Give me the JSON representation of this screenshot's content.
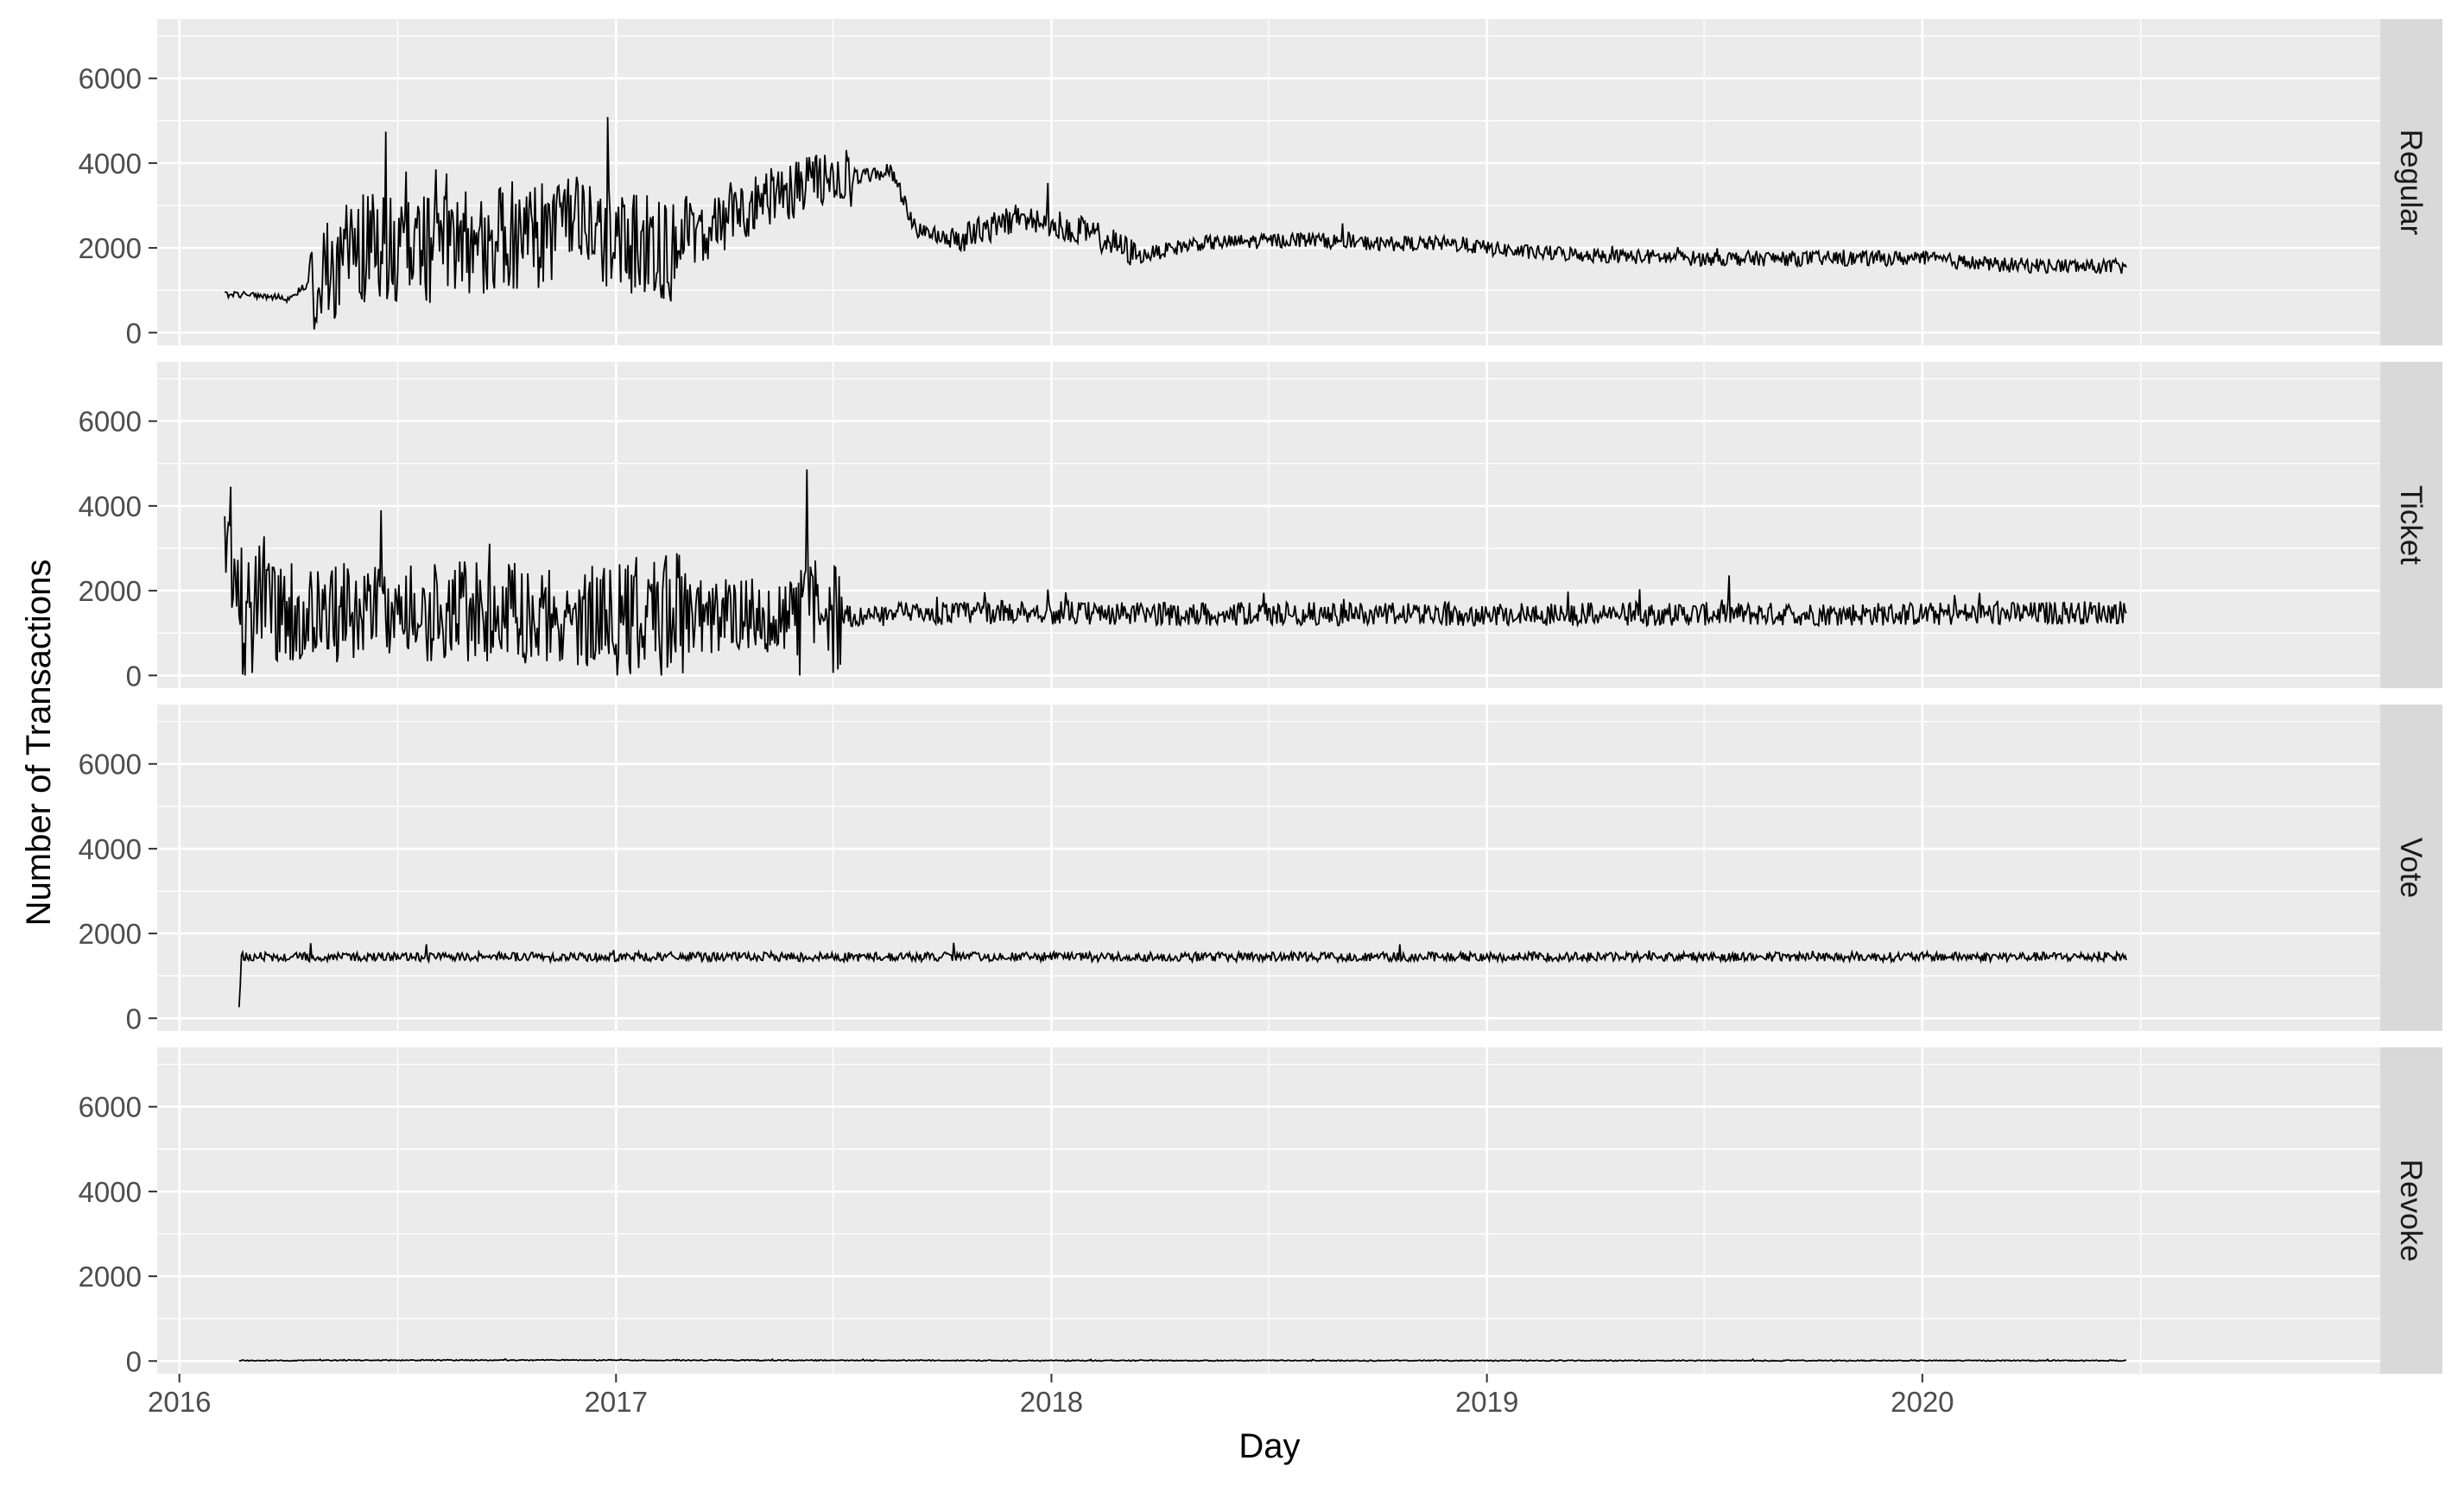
{
  "chart_data": {
    "type": "line",
    "xlabel": "Day",
    "ylabel": "Number of Transactions",
    "x_range": [
      "2016-02-08",
      "2020-06-20"
    ],
    "x_ticks": [
      "2016",
      "2017",
      "2018",
      "2019",
      "2020"
    ],
    "y_ticks": [
      0,
      2000,
      4000,
      6000
    ],
    "ylim": [
      -300,
      7400
    ],
    "shared_y_axis": true,
    "facet_strip_position": "right",
    "background_color": "#ebebeb",
    "gridline_color": "#ffffff",
    "strip_color": "#d9d9d9",
    "line_color": "#000000",
    "panels": [
      {
        "name": "Regular",
        "series": [
          {
            "x": "2016-02-08",
            "y": 900
          },
          {
            "x": "2016-03-01",
            "y": 900
          },
          {
            "x": "2016-04-01",
            "y": 800
          },
          {
            "x": "2016-04-20",
            "y": 1200
          },
          {
            "x": "2016-06-01",
            "y": 2000
          },
          {
            "x": "2016-08-01",
            "y": 2000
          },
          {
            "x": "2016-10-01",
            "y": 2300
          },
          {
            "x": "2016-12-01",
            "y": 2400
          },
          {
            "x": "2017-01-01",
            "y": 2200
          },
          {
            "x": "2017-02-15",
            "y": 2000
          },
          {
            "x": "2017-04-01",
            "y": 2600
          },
          {
            "x": "2017-05-15",
            "y": 3300
          },
          {
            "x": "2017-07-01",
            "y": 3600
          },
          {
            "x": "2017-08-20",
            "y": 3800
          },
          {
            "x": "2017-09-10",
            "y": 2400
          },
          {
            "x": "2017-10-15",
            "y": 2200
          },
          {
            "x": "2017-12-01",
            "y": 2700
          },
          {
            "x": "2018-01-15",
            "y": 2500
          },
          {
            "x": "2018-02-15",
            "y": 2200
          },
          {
            "x": "2018-03-15",
            "y": 1800
          },
          {
            "x": "2018-05-01",
            "y": 2100
          },
          {
            "x": "2018-08-01",
            "y": 2200
          },
          {
            "x": "2018-10-01",
            "y": 2100
          },
          {
            "x": "2018-12-01",
            "y": 2100
          },
          {
            "x": "2019-02-01",
            "y": 1900
          },
          {
            "x": "2019-05-01",
            "y": 1800
          },
          {
            "x": "2019-07-01",
            "y": 1750
          },
          {
            "x": "2019-10-01",
            "y": 1750
          },
          {
            "x": "2020-01-01",
            "y": 1750
          },
          {
            "x": "2020-03-01",
            "y": 1600
          },
          {
            "x": "2020-06-20",
            "y": 1550
          }
        ]
      },
      {
        "name": "Ticket",
        "series": [
          {
            "x": "2016-02-08",
            "y": 4000
          },
          {
            "x": "2016-02-20",
            "y": 1500
          },
          {
            "x": "2016-04-01",
            "y": 1500
          },
          {
            "x": "2016-06-01",
            "y": 1500
          },
          {
            "x": "2016-09-01",
            "y": 1500
          },
          {
            "x": "2017-01-01",
            "y": 1400
          },
          {
            "x": "2017-03-01",
            "y": 1400
          },
          {
            "x": "2017-07-05",
            "y": 1400
          },
          {
            "x": "2017-09-01",
            "y": 1450
          },
          {
            "x": "2017-12-01",
            "y": 1500
          },
          {
            "x": "2018-03-01",
            "y": 1450
          },
          {
            "x": "2018-09-01",
            "y": 1450
          },
          {
            "x": "2019-03-01",
            "y": 1450
          },
          {
            "x": "2019-09-01",
            "y": 1450
          },
          {
            "x": "2020-03-01",
            "y": 1450
          },
          {
            "x": "2020-06-20",
            "y": 1500
          }
        ]
      },
      {
        "name": "Vote",
        "series": [
          {
            "x": "2016-02-20",
            "y": 150
          },
          {
            "x": "2016-02-22",
            "y": 1450
          },
          {
            "x": "2017-01-01",
            "y": 1450
          },
          {
            "x": "2018-01-01",
            "y": 1450
          },
          {
            "x": "2019-01-01",
            "y": 1450
          },
          {
            "x": "2020-06-20",
            "y": 1450
          }
        ]
      },
      {
        "name": "Revoke",
        "series": [
          {
            "x": "2016-02-20",
            "y": 10
          },
          {
            "x": "2016-08-01",
            "y": 20
          },
          {
            "x": "2017-01-01",
            "y": 20
          },
          {
            "x": "2018-01-01",
            "y": 10
          },
          {
            "x": "2019-01-01",
            "y": 10
          },
          {
            "x": "2020-06-20",
            "y": 10
          }
        ]
      }
    ]
  }
}
